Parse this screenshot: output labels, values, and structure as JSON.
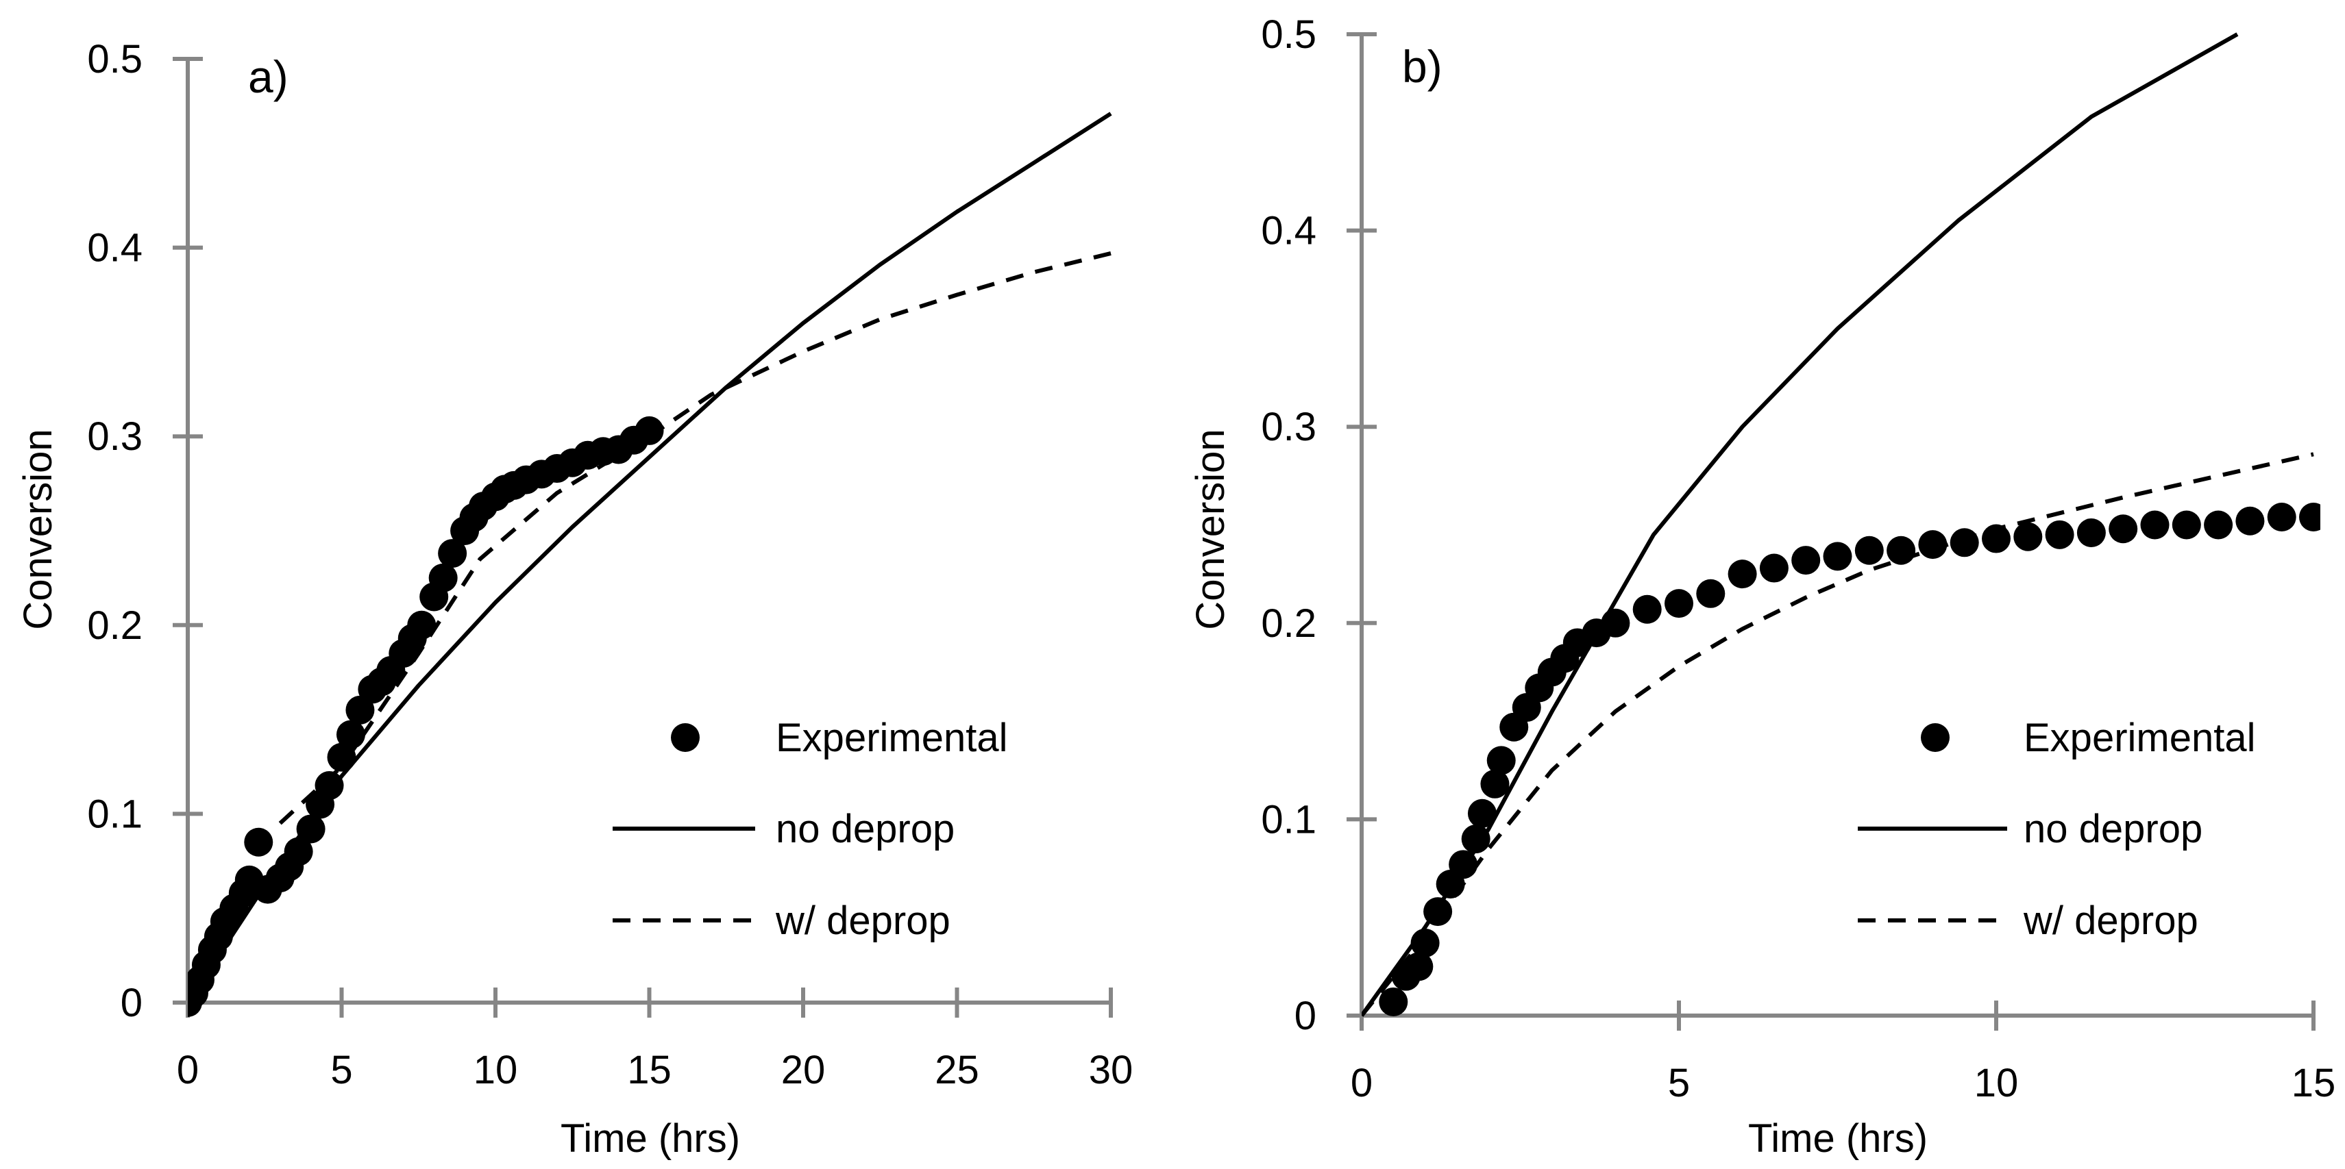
{
  "chart_data": [
    {
      "type": "scatter",
      "panel_label": "a)",
      "xlabel": "Time (hrs)",
      "ylabel": "Conversion",
      "xlim": [
        0,
        30
      ],
      "ylim": [
        0,
        0.5
      ],
      "xticks": [
        "0",
        "5",
        "10",
        "15",
        "20",
        "25",
        "30"
      ],
      "yticks": [
        "0",
        "0.1",
        "0.2",
        "0.3",
        "0.4",
        "0.5"
      ],
      "legend_position": "lower-right",
      "grid": false,
      "series": [
        {
          "name": "Experimental",
          "style": "markers",
          "x": [
            0,
            0.2,
            0.4,
            0.6,
            0.8,
            1,
            1.2,
            1.5,
            1.8,
            2,
            2.3,
            2.6,
            3,
            3.3,
            3.6,
            4,
            4.3,
            4.6,
            5,
            5.3,
            5.6,
            6,
            6.3,
            6.6,
            7,
            7.3,
            7.6,
            8,
            8.3,
            8.6,
            9,
            9.3,
            9.6,
            10,
            10.3,
            10.6,
            11,
            11.5,
            12,
            12.5,
            13,
            13.5,
            14,
            14.5,
            15
          ],
          "y": [
            0,
            0.005,
            0.012,
            0.02,
            0.028,
            0.035,
            0.043,
            0.05,
            0.058,
            0.065,
            0.085,
            0.06,
            0.066,
            0.072,
            0.08,
            0.092,
            0.105,
            0.115,
            0.13,
            0.142,
            0.155,
            0.166,
            0.17,
            0.176,
            0.185,
            0.193,
            0.2,
            0.215,
            0.225,
            0.238,
            0.25,
            0.257,
            0.263,
            0.268,
            0.272,
            0.274,
            0.277,
            0.28,
            0.283,
            0.286,
            0.29,
            0.292,
            0.293,
            0.298,
            0.303
          ]
        },
        {
          "name": "no deprop",
          "style": "solid",
          "x": [
            0,
            2.5,
            5,
            7.5,
            10,
            12.5,
            15,
            17.5,
            20,
            22.5,
            25,
            27.5,
            30
          ],
          "y": [
            0,
            0.062,
            0.12,
            0.168,
            0.212,
            0.252,
            0.289,
            0.326,
            0.36,
            0.391,
            0.419,
            0.445,
            0.471
          ]
        },
        {
          "name": "w/ deprop",
          "style": "dashed",
          "x": [
            3,
            5,
            7.5,
            9.5,
            12,
            15,
            17,
            20,
            22.5,
            25,
            27.5,
            30
          ],
          "y": [
            0.095,
            0.125,
            0.185,
            0.235,
            0.27,
            0.3,
            0.322,
            0.345,
            0.362,
            0.375,
            0.387,
            0.397
          ]
        }
      ]
    },
    {
      "type": "scatter",
      "panel_label": "b)",
      "xlabel": "Time (hrs)",
      "ylabel": "Conversion",
      "xlim": [
        0,
        15
      ],
      "ylim": [
        0,
        0.5
      ],
      "xticks": [
        "0",
        "5",
        "10",
        "15"
      ],
      "yticks": [
        "0",
        "0.1",
        "0.2",
        "0.3",
        "0.4",
        "0.5"
      ],
      "legend_position": "lower-right",
      "grid": false,
      "series": [
        {
          "name": "Experimental",
          "style": "markers",
          "x": [
            0.5,
            0.7,
            0.9,
            1,
            1.2,
            1.4,
            1.6,
            1.8,
            1.9,
            2.1,
            2.2,
            2.4,
            2.6,
            2.8,
            3,
            3.2,
            3.4,
            3.7,
            4,
            4.5,
            5,
            5.5,
            6,
            6.5,
            7,
            7.5,
            8,
            8.5,
            9,
            9.5,
            10,
            10.5,
            11,
            11.5,
            12,
            12.5,
            13,
            13.5,
            14,
            14.5,
            15
          ],
          "y": [
            0.007,
            0.02,
            0.025,
            0.037,
            0.053,
            0.067,
            0.077,
            0.09,
            0.103,
            0.118,
            0.13,
            0.147,
            0.157,
            0.167,
            0.175,
            0.182,
            0.19,
            0.195,
            0.2,
            0.207,
            0.21,
            0.215,
            0.225,
            0.228,
            0.232,
            0.234,
            0.237,
            0.237,
            0.24,
            0.241,
            0.243,
            0.244,
            0.245,
            0.246,
            0.248,
            0.25,
            0.25,
            0.25,
            0.252,
            0.254,
            0.254
          ]
        },
        {
          "name": "no deprop",
          "style": "solid",
          "x": [
            0,
            1,
            2,
            3,
            4.6,
            6,
            7.5,
            9.4,
            11.5,
            13.8
          ],
          "y": [
            0,
            0.045,
            0.095,
            0.155,
            0.245,
            0.3,
            0.35,
            0.405,
            0.458,
            0.5
          ]
        },
        {
          "name": "w/ deprop",
          "style": "dashed",
          "x": [
            0,
            1,
            2,
            3,
            4,
            5,
            6,
            7,
            8,
            10,
            12,
            15
          ],
          "y": [
            0,
            0.04,
            0.085,
            0.125,
            0.155,
            0.178,
            0.197,
            0.213,
            0.227,
            0.248,
            0.264,
            0.286
          ]
        }
      ]
    }
  ],
  "colors": {
    "axis": "#868686",
    "data": "#000000"
  }
}
